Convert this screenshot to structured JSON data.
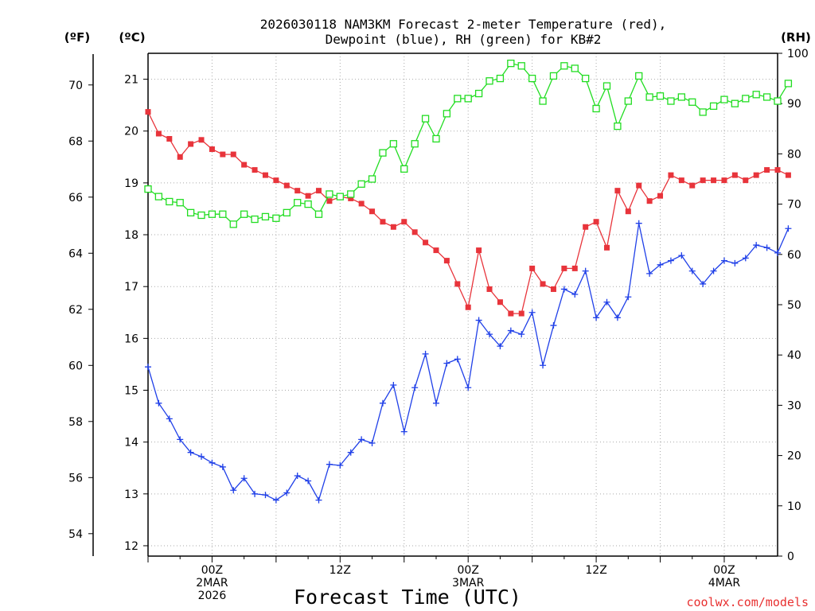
{
  "chart_data": {
    "type": "line",
    "title_line1": "2026030118 NAM3KM Forecast 2-meter Temperature (red),",
    "title_line2": "Dewpoint (blue), RH (green) for KB#2",
    "xlabel": "Forecast Time (UTC)",
    "credit": "coolwx.com/models",
    "x_unit": "hours since 2026-03-01 18Z",
    "xlim": [
      0,
      59
    ],
    "x_ticks": [
      {
        "x": 6,
        "lines": [
          "00Z",
          "2MAR",
          "2026"
        ]
      },
      {
        "x": 18,
        "lines": [
          "12Z"
        ]
      },
      {
        "x": 30,
        "lines": [
          "00Z",
          "3MAR"
        ]
      },
      {
        "x": 42,
        "lines": [
          "12Z"
        ]
      },
      {
        "x": 54,
        "lines": [
          "00Z",
          "4MAR"
        ]
      }
    ],
    "axes": {
      "left_f": {
        "label": "(ºF)",
        "lim": [
          53.2,
          71.1
        ],
        "ticks": [
          54,
          56,
          58,
          60,
          62,
          64,
          66,
          68,
          70
        ]
      },
      "left_c": {
        "label": "(ºC)",
        "lim": [
          11.8,
          21.5
        ],
        "ticks": [
          12,
          13,
          14,
          15,
          16,
          17,
          18,
          19,
          20,
          21
        ]
      },
      "right_rh": {
        "label": "(RH)",
        "lim": [
          0,
          100
        ],
        "ticks": [
          0,
          10,
          20,
          30,
          40,
          50,
          60,
          70,
          80,
          90,
          100
        ]
      }
    },
    "grid": true,
    "series": [
      {
        "name": "Temperature",
        "color": "#e8343b",
        "marker": "filled-square",
        "axis": "left_c",
        "values": [
          20.37,
          19.95,
          19.85,
          19.5,
          19.75,
          19.83,
          19.65,
          19.55,
          19.55,
          19.35,
          19.25,
          19.15,
          19.05,
          18.95,
          18.85,
          18.75,
          18.85,
          18.65,
          18.73,
          18.7,
          18.6,
          18.45,
          18.25,
          18.15,
          18.25,
          18.05,
          17.85,
          17.7,
          17.5,
          17.05,
          16.6,
          17.7,
          16.95,
          16.7,
          16.48,
          16.48,
          17.35,
          17.05,
          16.95,
          17.35,
          17.35,
          18.15,
          18.25,
          17.75,
          18.85,
          18.45,
          18.95,
          18.65,
          18.75,
          19.15,
          19.05,
          18.95,
          19.05,
          19.05,
          19.05,
          19.15,
          19.05,
          19.15,
          19.25,
          19.25,
          19.15
        ]
      },
      {
        "name": "Dewpoint",
        "color": "#2040e8",
        "marker": "plus",
        "axis": "left_c",
        "values": [
          15.45,
          14.75,
          14.45,
          14.05,
          13.8,
          13.72,
          13.6,
          13.52,
          13.07,
          13.3,
          13.0,
          12.98,
          12.88,
          13.02,
          13.35,
          13.25,
          12.88,
          13.57,
          13.55,
          13.8,
          14.05,
          13.98,
          14.75,
          15.1,
          14.2,
          15.05,
          15.7,
          14.75,
          15.52,
          15.6,
          15.05,
          16.35,
          16.08,
          15.85,
          16.15,
          16.08,
          16.5,
          15.48,
          16.25,
          16.95,
          16.85,
          17.3,
          16.4,
          16.7,
          16.4,
          16.8,
          18.22,
          17.25,
          17.42,
          17.5,
          17.6,
          17.3,
          17.05,
          17.3,
          17.5,
          17.45,
          17.55,
          17.8,
          17.75,
          17.65,
          18.12
        ]
      },
      {
        "name": "RH",
        "color": "#22dd22",
        "marker": "open-square",
        "axis": "right_rh",
        "values": [
          73.0,
          71.5,
          70.5,
          70.3,
          68.3,
          67.8,
          68.0,
          68.0,
          66.0,
          68.0,
          67.0,
          67.5,
          67.2,
          68.3,
          70.3,
          70.0,
          68.0,
          72.0,
          71.5,
          72.0,
          74.0,
          75.0,
          80.2,
          82.0,
          77.0,
          82.0,
          87.0,
          83.0,
          88.0,
          91.0,
          91.0,
          92.0,
          94.5,
          95.0,
          98.0,
          97.5,
          95.0,
          90.5,
          95.5,
          97.5,
          97.0,
          95.0,
          89.0,
          93.5,
          85.5,
          90.5,
          95.5,
          91.3,
          91.5,
          90.5,
          91.3,
          90.3,
          88.3,
          89.5,
          90.8,
          90.0,
          91.0,
          91.8,
          91.3,
          90.5,
          94.0
        ]
      }
    ]
  }
}
